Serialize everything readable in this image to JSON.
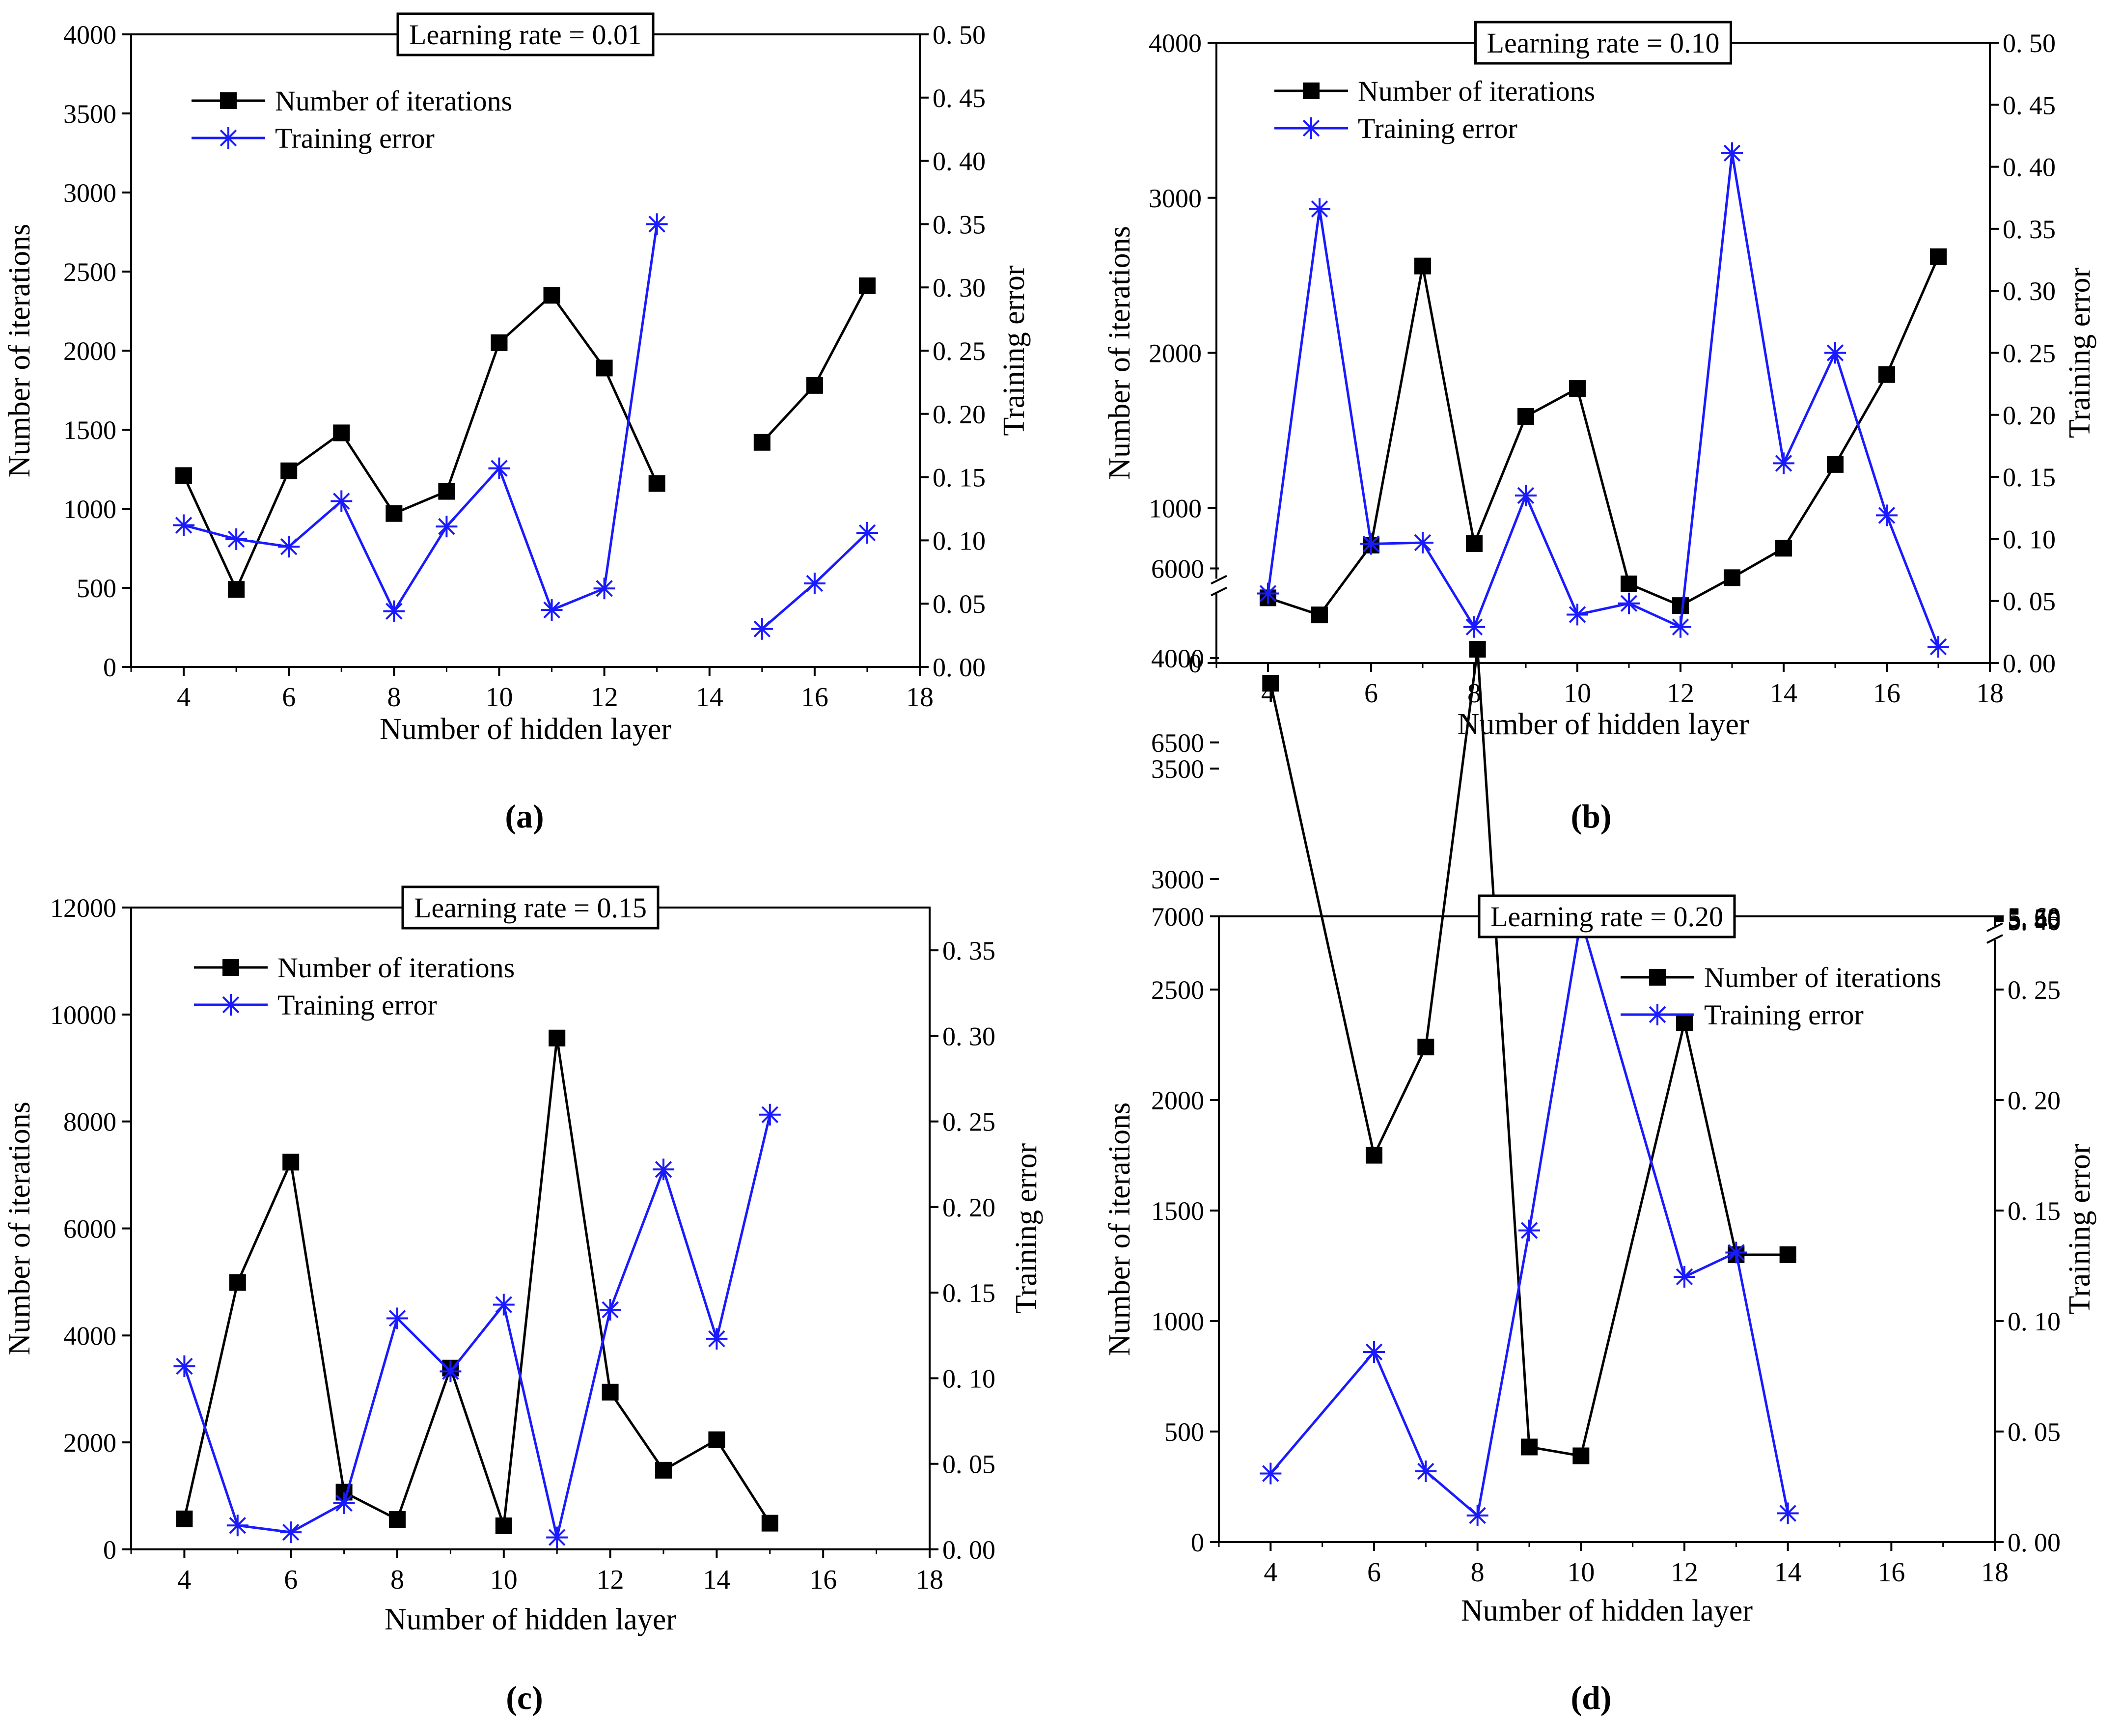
{
  "figure": {
    "title": "Number of iterations and training error versus number of hidden layer for four learning rates"
  },
  "chart_data": [
    {
      "id": "a",
      "panel_label": "(a)",
      "type": "line",
      "title": "Learning rate = 0.01",
      "xlabel": "Number of hidden layer",
      "ylabel_left": "Number of iterations",
      "ylabel_right": "Training error",
      "xlim": [
        3,
        18
      ],
      "ylim_left": [
        0,
        4000
      ],
      "ylim_right": [
        0,
        0.5
      ],
      "x_ticks": [
        4,
        6,
        8,
        10,
        12,
        14,
        16,
        18
      ],
      "x_tick_labels": [
        "4",
        "6",
        "8",
        "10",
        "12",
        "14",
        "16",
        "18"
      ],
      "y_left_ticks": [
        0,
        500,
        1000,
        1500,
        2000,
        2500,
        3000,
        3500,
        4000
      ],
      "y_left_tick_labels": [
        "0",
        "500",
        "1000",
        "1500",
        "2000",
        "2500",
        "3000",
        "3500",
        "4000"
      ],
      "y_right_ticks": [
        0,
        0.05,
        0.1,
        0.15,
        0.2,
        0.25,
        0.3,
        0.35,
        0.4,
        0.45,
        0.5
      ],
      "y_right_tick_labels": [
        "0. 00",
        "0. 05",
        "0. 10",
        "0. 15",
        "0. 20",
        "0. 25",
        "0. 30",
        "0. 35",
        "0. 40",
        "0. 45",
        "0. 50"
      ],
      "legend_position": "top-left",
      "series": [
        {
          "name": "Number of iterations",
          "axis": "left",
          "color": "#000000",
          "marker": "square",
          "segments": [
            {
              "x": [
                4,
                5,
                6,
                7,
                8,
                9,
                10,
                11,
                12,
                13
              ],
              "y": [
                1210,
                490,
                1240,
                1480,
                970,
                1110,
                2050,
                2350,
                1890,
                1160
              ]
            },
            {
              "x": [
                15,
                16,
                17
              ],
              "y": [
                1420,
                1780,
                2410
              ]
            }
          ]
        },
        {
          "name": "Training error",
          "axis": "right",
          "color": "#1a1aff",
          "marker": "asterisk",
          "segments": [
            {
              "x": [
                4,
                5,
                6,
                7,
                8,
                9,
                10,
                11,
                12,
                13
              ],
              "y": [
                0.112,
                0.101,
                0.095,
                0.131,
                0.044,
                0.111,
                0.157,
                0.045,
                0.062,
                0.35
              ]
            },
            {
              "x": [
                15,
                16,
                17
              ],
              "y": [
                0.03,
                0.066,
                0.106
              ]
            }
          ]
        }
      ]
    },
    {
      "id": "b",
      "panel_label": "(b)",
      "type": "line",
      "title": "Learning rate = 0.10",
      "xlabel": "Number of hidden layer",
      "ylabel_left": "Number of iterations",
      "ylabel_right": "Training error",
      "xlim": [
        3,
        18
      ],
      "ylim_left": [
        0,
        4000
      ],
      "ylim_right": [
        0,
        0.5
      ],
      "x_ticks": [
        4,
        6,
        8,
        10,
        12,
        14,
        16,
        18
      ],
      "x_tick_labels": [
        "4",
        "6",
        "8",
        "10",
        "12",
        "14",
        "16",
        "18"
      ],
      "y_left_ticks": [
        0,
        1000,
        2000,
        3000,
        4000
      ],
      "y_left_tick_labels": [
        "0",
        "1000",
        "2000",
        "3000",
        "4000"
      ],
      "y_right_ticks": [
        0,
        0.05,
        0.1,
        0.15,
        0.2,
        0.25,
        0.3,
        0.35,
        0.4,
        0.45,
        0.5
      ],
      "y_right_tick_labels": [
        "0. 00",
        "0. 05",
        "0. 10",
        "0. 15",
        "0. 20",
        "0. 25",
        "0. 30",
        "0. 35",
        "0. 40",
        "0. 45",
        "0. 50"
      ],
      "legend_position": "top-left",
      "series": [
        {
          "name": "Number of iterations",
          "axis": "left",
          "color": "#000000",
          "marker": "square",
          "segments": [
            {
              "x": [
                4,
                5,
                6,
                7,
                8,
                9,
                10,
                11,
                12,
                13,
                14,
                15,
                16,
                17
              ],
              "y": [
                420,
                310,
                760,
                2560,
                770,
                1590,
                1770,
                510,
                370,
                550,
                740,
                1280,
                1860,
                2620
              ]
            }
          ]
        },
        {
          "name": "Training error",
          "axis": "right",
          "color": "#1a1aff",
          "marker": "asterisk",
          "segments": [
            {
              "x": [
                4,
                5,
                6,
                7,
                8,
                9,
                10,
                11,
                12,
                13,
                14,
                15,
                16,
                17
              ],
              "y": [
                0.056,
                0.366,
                0.096,
                0.097,
                0.029,
                0.135,
                0.039,
                0.048,
                0.029,
                0.411,
                0.161,
                0.25,
                0.119,
                0.013
              ]
            }
          ]
        }
      ]
    },
    {
      "id": "c",
      "panel_label": "(c)",
      "type": "line",
      "title": "Learning rate = 0.15",
      "xlabel": "Number of hidden layer",
      "ylabel_left": "Number of iterations",
      "ylabel_right": "Training error",
      "xlim": [
        3,
        18
      ],
      "ylim_left": [
        0,
        12000
      ],
      "ylim_right": [
        0,
        0.375
      ],
      "x_ticks": [
        4,
        6,
        8,
        10,
        12,
        14,
        16,
        18
      ],
      "x_tick_labels": [
        "4",
        "6",
        "8",
        "10",
        "12",
        "14",
        "16",
        "18"
      ],
      "y_left_ticks": [
        0,
        2000,
        4000,
        6000,
        8000,
        10000,
        12000
      ],
      "y_left_tick_labels": [
        "0",
        "2000",
        "4000",
        "6000",
        "8000",
        "10000",
        "12000"
      ],
      "y_right_ticks": [
        0,
        0.05,
        0.1,
        0.15,
        0.2,
        0.25,
        0.3,
        0.35
      ],
      "y_right_tick_labels": [
        "0. 00",
        "0. 05",
        "0. 10",
        "0. 15",
        "0. 20",
        "0. 25",
        "0. 30",
        "0. 35"
      ],
      "legend_position": "top-left",
      "series": [
        {
          "name": "Number of iterations",
          "axis": "left",
          "color": "#000000",
          "marker": "square",
          "segments": [
            {
              "x": [
                4,
                5,
                6,
                7,
                8,
                9,
                10,
                11,
                12,
                13,
                14,
                15
              ],
              "y": [
                570,
                4990,
                7240,
                1070,
                560,
                3390,
                440,
                9560,
                2940,
                1480,
                2050,
                490
              ]
            }
          ]
        },
        {
          "name": "Training error",
          "axis": "right",
          "color": "#1a1aff",
          "marker": "asterisk",
          "segments": [
            {
              "x": [
                4,
                5,
                6,
                7,
                8,
                9,
                10,
                11,
                12,
                13,
                14,
                15
              ],
              "y": [
                0.107,
                0.014,
                0.01,
                0.027,
                0.135,
                0.104,
                0.143,
                0.007,
                0.14,
                0.222,
                0.123,
                0.254
              ]
            }
          ]
        }
      ]
    },
    {
      "id": "d",
      "panel_label": "(d)",
      "type": "line",
      "title": "Learning rate = 0.20",
      "xlabel": "Number of hidden layer",
      "ylabel_left": "Number of iterations",
      "ylabel_right": "Training error",
      "xlim": [
        3,
        18
      ],
      "ylim_left_lower": [
        0,
        4250
      ],
      "ylim_left_upper": [
        6000,
        7000
      ],
      "ylim_right_lower": [
        0,
        0.27
      ],
      "ylim_right_upper": [
        5.4,
        5.6
      ],
      "x_ticks": [
        4,
        6,
        8,
        10,
        12,
        14,
        16,
        18
      ],
      "x_tick_labels": [
        "4",
        "6",
        "8",
        "10",
        "12",
        "14",
        "16",
        "18"
      ],
      "y_left_ticks": [
        0,
        500,
        1000,
        1500,
        2000,
        2500,
        3000,
        3500,
        4000,
        6000,
        6500,
        7000
      ],
      "y_left_tick_labels": [
        "0",
        "500",
        "1000",
        "1500",
        "2000",
        "2500",
        "3000",
        "3500",
        "4000",
        "6000",
        "6500",
        "7000"
      ],
      "y_right_ticks": [
        0,
        0.05,
        0.1,
        0.15,
        0.2,
        0.25,
        5.4,
        5.45,
        5.5,
        5.55,
        5.6
      ],
      "y_right_tick_labels": [
        "0. 00",
        "0. 05",
        "0. 10",
        "0. 15",
        "0. 20",
        "0. 25",
        "5. 40",
        "5. 45",
        "5. 50",
        "5. 55",
        "5. 60"
      ],
      "axis_break": true,
      "legend_position": "top-right",
      "series": [
        {
          "name": "Number of iterations",
          "axis": "left",
          "color": "#000000",
          "marker": "square",
          "segments": [
            {
              "x": [
                4,
                6,
                7,
                8,
                9,
                10,
                12,
                13,
                14
              ],
              "y": [
                6330,
                1750,
                2240,
                4040,
                430,
                390,
                2350,
                1300,
                1300
              ]
            }
          ]
        },
        {
          "name": "Training error",
          "axis": "right",
          "color": "#1a1aff",
          "marker": "asterisk",
          "segments": [
            {
              "x": [
                4,
                6,
                7,
                8,
                9,
                10,
                12,
                13,
                14
              ],
              "y": [
                0.031,
                0.086,
                0.032,
                0.012,
                0.141,
                5.48,
                0.12,
                0.131,
                0.013
              ]
            }
          ]
        }
      ]
    }
  ]
}
